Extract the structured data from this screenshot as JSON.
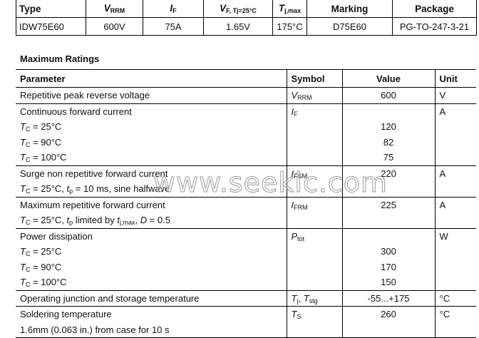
{
  "summary": {
    "headers": [
      [
        {
          "t": "Type"
        }
      ],
      [
        {
          "t": "V",
          "s": "i"
        },
        {
          "t": "RRM",
          "s": "sub"
        }
      ],
      [
        {
          "t": "I",
          "s": "i"
        },
        {
          "t": "F",
          "s": "sub"
        }
      ],
      [
        {
          "t": "V",
          "s": "i"
        },
        {
          "t": "F, Tj=25°C",
          "s": "sub"
        }
      ],
      [
        {
          "t": "T",
          "s": "i"
        },
        {
          "t": "j,max",
          "s": "sub"
        }
      ],
      [
        {
          "t": "Marking"
        }
      ],
      [
        {
          "t": "Package"
        }
      ]
    ],
    "values": [
      "IDW75E60",
      "600V",
      "75A",
      "1.65V",
      "175°C",
      "D75E60",
      "PG-TO-247-3-21"
    ]
  },
  "section_title": "Maximum Ratings",
  "ratings": {
    "headers": [
      "Parameter",
      "Symbol",
      "Value",
      "Unit"
    ],
    "rows": [
      {
        "param": [
          [
            {
              "t": "Repetitive peak reverse voltage"
            }
          ]
        ],
        "symbol": [
          {
            "t": "V",
            "s": "i"
          },
          {
            "t": "RRM",
            "s": "sub"
          }
        ],
        "values": [
          "600"
        ],
        "unit": "V"
      },
      {
        "param": [
          [
            {
              "t": "Continuous forward current"
            }
          ],
          [
            {
              "t": "T",
              "s": "i"
            },
            {
              "t": "C",
              "s": "sub"
            },
            {
              "t": " = 25°C"
            }
          ],
          [
            {
              "t": "T",
              "s": "i"
            },
            {
              "t": "C",
              "s": "sub"
            },
            {
              "t": " = 90°C"
            }
          ],
          [
            {
              "t": "T",
              "s": "i"
            },
            {
              "t": "C",
              "s": "sub"
            },
            {
              "t": " = 100°C"
            }
          ]
        ],
        "symbol": [
          {
            "t": "I",
            "s": "i"
          },
          {
            "t": "F",
            "s": "sub"
          }
        ],
        "values": [
          "",
          "120",
          "82",
          "75"
        ],
        "unit": "A"
      },
      {
        "param": [
          [
            {
              "t": "Surge non repetitive forward current"
            }
          ],
          [
            {
              "t": "T",
              "s": "i"
            },
            {
              "t": "C",
              "s": "sub"
            },
            {
              "t": " = 25°C, "
            },
            {
              "t": "t",
              "s": "i"
            },
            {
              "t": "p",
              "s": "sub"
            },
            {
              "t": " = 10 ms, sine halfwave"
            }
          ]
        ],
        "symbol": [
          {
            "t": "I",
            "s": "i"
          },
          {
            "t": "FSM",
            "s": "sub"
          }
        ],
        "values": [
          "220"
        ],
        "unit": "A"
      },
      {
        "param": [
          [
            {
              "t": "Maximum repetitive forward current"
            }
          ],
          [
            {
              "t": "T",
              "s": "i"
            },
            {
              "t": "C",
              "s": "sub"
            },
            {
              "t": " = 25°C, "
            },
            {
              "t": "t",
              "s": "i"
            },
            {
              "t": "p",
              "s": "sub"
            },
            {
              "t": " limited by "
            },
            {
              "t": "t",
              "s": "i"
            },
            {
              "t": "j,max",
              "s": "sub"
            },
            {
              "t": ", "
            },
            {
              "t": "D",
              "s": "i"
            },
            {
              "t": " = 0.5"
            }
          ]
        ],
        "symbol": [
          {
            "t": "I",
            "s": "i"
          },
          {
            "t": "FRM",
            "s": "sub"
          }
        ],
        "values": [
          "225"
        ],
        "unit": "A"
      },
      {
        "param": [
          [
            {
              "t": "Power dissipation"
            }
          ],
          [
            {
              "t": "T",
              "s": "i"
            },
            {
              "t": "C",
              "s": "sub"
            },
            {
              "t": " = 25°C"
            }
          ],
          [
            {
              "t": "T",
              "s": "i"
            },
            {
              "t": "C",
              "s": "sub"
            },
            {
              "t": " = 90°C"
            }
          ],
          [
            {
              "t": "T",
              "s": "i"
            },
            {
              "t": "C",
              "s": "sub"
            },
            {
              "t": " = 100°C"
            }
          ]
        ],
        "symbol": [
          {
            "t": "P",
            "s": "i"
          },
          {
            "t": "tot",
            "s": "sub"
          }
        ],
        "values": [
          "",
          "300",
          "170",
          "150"
        ],
        "unit": "W"
      },
      {
        "param": [
          [
            {
              "t": "Operating junction and storage temperature"
            }
          ]
        ],
        "symbol": [
          {
            "t": "T",
            "s": "i"
          },
          {
            "t": "j",
            "s": "sub"
          },
          {
            "t": ", "
          },
          {
            "t": "T",
            "s": "i"
          },
          {
            "t": "stg",
            "s": "sub"
          }
        ],
        "values": [
          "-55...+175"
        ],
        "unit": "°C"
      },
      {
        "param": [
          [
            {
              "t": "Soldering temperature"
            }
          ],
          [
            {
              "t": "1.6mm (0.063 in.) from case for 10 s"
            }
          ]
        ],
        "symbol": [
          {
            "t": "T",
            "s": "i"
          },
          {
            "t": "S",
            "s": "sub"
          }
        ],
        "values": [
          "260"
        ],
        "unit": "°C"
      }
    ]
  },
  "watermark": "www.seekic.com"
}
